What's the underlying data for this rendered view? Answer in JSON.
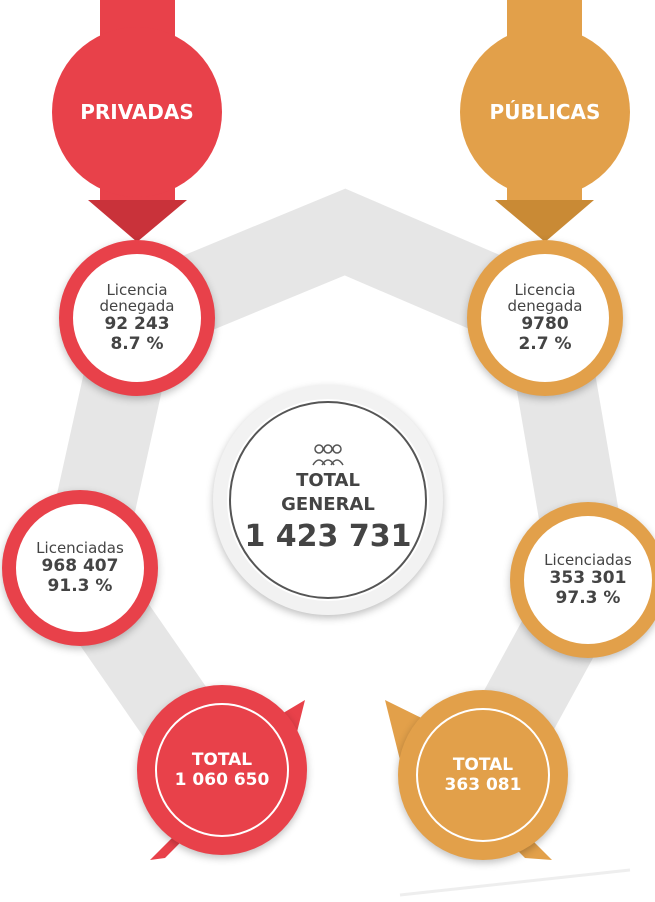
{
  "privadas": {
    "title": "PRIVADAS",
    "denegada": {
      "label": "Licencia denegada",
      "value": "92 243",
      "percent": "8.7 %"
    },
    "licenciadas": {
      "label": "Licenciadas",
      "value": "968 407",
      "percent": "91.3 %"
    },
    "total": {
      "label": "TOTAL",
      "value": "1 060 650"
    }
  },
  "publicas": {
    "title": "PÚBLICAS",
    "denegada": {
      "label": "Licencia denegada",
      "value": "9780",
      "percent": "2.7 %"
    },
    "licenciadas": {
      "label": "Licenciadas",
      "value": "353 301",
      "percent": "97.3 %"
    },
    "total": {
      "label": "TOTAL",
      "value": "363 081"
    }
  },
  "total_general": {
    "label": "TOTAL GENERAL",
    "value": "1 423 731"
  }
}
